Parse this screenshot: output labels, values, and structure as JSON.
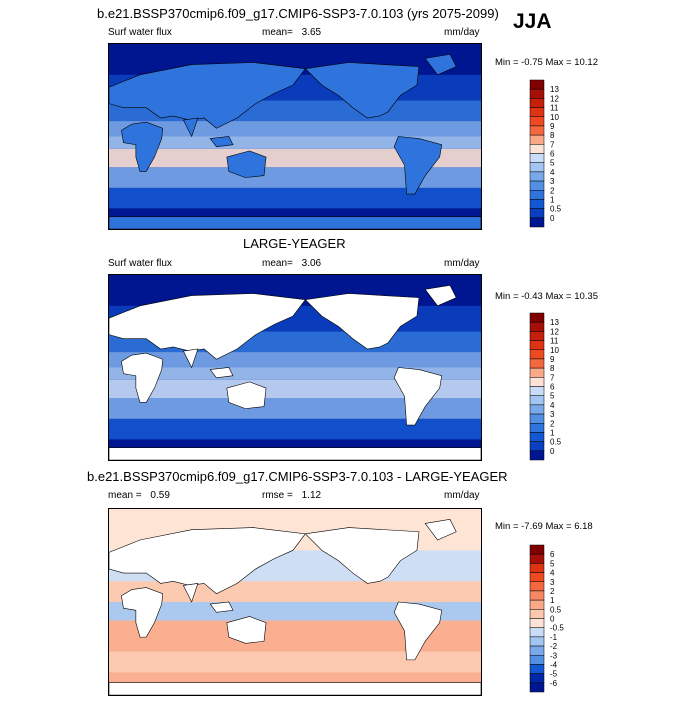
{
  "season": "JJA",
  "colors": {
    "pos": [
      "#fde3d5",
      "#fbc7ad",
      "#f9a988",
      "#f78864",
      "#f4683f",
      "#ee4a22",
      "#de3413",
      "#c6200d",
      "#a50f08",
      "#800000"
    ],
    "neg": [
      "#c9ddf8",
      "#a2c5f1",
      "#7aa9ea",
      "#5390e3",
      "#2f74dc",
      "#1457d2",
      "#0a3fc0",
      "#0027a8",
      "#001690"
    ],
    "land": "#ffffff",
    "coast": "#000000"
  },
  "panels": [
    {
      "title": "b.e21.BSSP370cmip6.f09_g17.CMIP6-SSP3-7.0.103 (yrs 2075-2099)",
      "left_label": "Surf water flux",
      "mean_label": "mean=",
      "mean_value": "3.65",
      "rmse_label": "",
      "rmse_value": "",
      "units": "mm/day",
      "min_label": "Min =",
      "min_value": "-0.75",
      "max_label": "Max =",
      "max_value": "10.12",
      "levels": [
        "13",
        "12",
        "11",
        "10",
        "9",
        "8",
        "7",
        "6",
        "5",
        "4",
        "3",
        "2",
        "1",
        "0.5",
        "0"
      ],
      "land_masked": false
    },
    {
      "title": "LARGE-YEAGER",
      "left_label": "Surf water flux",
      "mean_label": "mean=",
      "mean_value": "3.06",
      "rmse_label": "",
      "rmse_value": "",
      "units": "mm/day",
      "min_label": "Min =",
      "min_value": "-0.43",
      "max_label": "Max =",
      "max_value": "10.35",
      "levels": [
        "13",
        "12",
        "11",
        "10",
        "9",
        "8",
        "7",
        "6",
        "5",
        "4",
        "3",
        "2",
        "1",
        "0.5",
        "0"
      ],
      "land_masked": true
    },
    {
      "title": "b.e21.BSSP370cmip6.f09_g17.CMIP6-SSP3-7.0.103 - LARGE-YEAGER",
      "left_label": "",
      "mean_label": "mean =",
      "mean_value": "0.59",
      "rmse_label": "rmse =",
      "rmse_value": "1.12",
      "units": "mm/day",
      "min_label": "Min =",
      "min_value": "-7.69",
      "max_label": "Max =",
      "max_value": "6.18",
      "levels": [
        "6",
        "5",
        "4",
        "3",
        "2",
        "1",
        "0.5",
        "0",
        "-0.5",
        "-1",
        "-2",
        "-3",
        "-4",
        "-5",
        "-6"
      ],
      "land_masked": true
    }
  ]
}
